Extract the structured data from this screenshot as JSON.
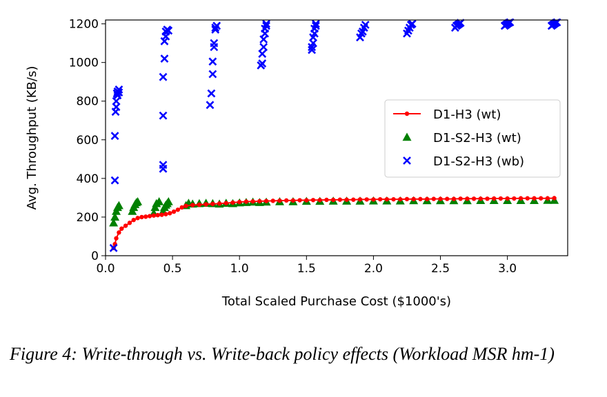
{
  "caption": "Figure 4: Write-through vs. Write-back policy effects (Workload MSR hm-1)",
  "chart_data": {
    "type": "scatter",
    "xlabel": "Total Scaled Purchase Cost ($1000's)",
    "ylabel": "Avg. Throughput (KB/s)",
    "xlim": [
      0.0,
      3.45
    ],
    "ylim": [
      0,
      1220
    ],
    "xticks": [
      "0.0",
      "0.5",
      "1.0",
      "1.5",
      "2.0",
      "2.5",
      "3.0"
    ],
    "yticks": [
      "0",
      "200",
      "400",
      "600",
      "800",
      "1000",
      "1200"
    ],
    "grid": false,
    "legend_position": "center-right",
    "series": [
      {
        "name": "D1-H3 (wt)",
        "marker": "line-dot",
        "color": "#ff0000",
        "x": [
          0.06,
          0.07,
          0.08,
          0.1,
          0.12,
          0.15,
          0.18,
          0.21,
          0.24,
          0.27,
          0.3,
          0.33,
          0.36,
          0.39,
          0.42,
          0.45,
          0.48,
          0.51,
          0.54,
          0.57,
          0.6,
          0.65,
          0.7,
          0.75,
          0.8,
          0.85,
          0.9,
          0.95,
          1.0,
          1.05,
          1.1,
          1.15,
          1.2,
          1.25,
          1.3,
          1.35,
          1.4,
          1.45,
          1.5,
          1.55,
          1.6,
          1.65,
          1.7,
          1.75,
          1.8,
          1.85,
          1.9,
          1.95,
          2.0,
          2.05,
          2.1,
          2.15,
          2.2,
          2.25,
          2.3,
          2.35,
          2.4,
          2.45,
          2.5,
          2.55,
          2.6,
          2.65,
          2.7,
          2.75,
          2.8,
          2.85,
          2.9,
          2.95,
          3.0,
          3.05,
          3.1,
          3.15,
          3.2,
          3.25,
          3.3,
          3.35
        ],
        "y": [
          40,
          60,
          90,
          120,
          140,
          155,
          170,
          185,
          195,
          200,
          202,
          205,
          208,
          210,
          212,
          215,
          220,
          228,
          238,
          250,
          258,
          262,
          264,
          266,
          268,
          270,
          272,
          275,
          278,
          280,
          281,
          282,
          283,
          284,
          285,
          286,
          286,
          287,
          287,
          288,
          288,
          289,
          289,
          290,
          290,
          290,
          291,
          291,
          291,
          292,
          292,
          292,
          292,
          293,
          293,
          293,
          293,
          294,
          294,
          294,
          294,
          295,
          295,
          295,
          295,
          295,
          296,
          296,
          296,
          296,
          297,
          297,
          297,
          297,
          297,
          298
        ]
      },
      {
        "name": "D1-S2-H3 (wt)",
        "marker": "triangle",
        "color": "#008000",
        "x": [
          0.06,
          0.07,
          0.08,
          0.09,
          0.1,
          0.2,
          0.21,
          0.22,
          0.23,
          0.24,
          0.36,
          0.37,
          0.38,
          0.4,
          0.43,
          0.44,
          0.45,
          0.46,
          0.47,
          0.6,
          0.62,
          0.65,
          0.7,
          0.75,
          0.8,
          0.85,
          0.9,
          0.95,
          1.0,
          1.05,
          1.1,
          1.15,
          1.2,
          1.3,
          1.4,
          1.5,
          1.6,
          1.7,
          1.8,
          1.9,
          2.0,
          2.1,
          2.2,
          2.3,
          2.4,
          2.5,
          2.6,
          2.7,
          2.8,
          2.9,
          3.0,
          3.1,
          3.2,
          3.3,
          3.35
        ],
        "y": [
          170,
          200,
          230,
          250,
          260,
          230,
          250,
          265,
          275,
          280,
          220,
          250,
          270,
          280,
          230,
          250,
          262,
          270,
          280,
          260,
          272,
          268,
          270,
          272,
          270,
          268,
          272,
          270,
          274,
          276,
          278,
          276,
          278,
          280,
          280,
          282,
          282,
          283,
          283,
          283,
          284,
          284,
          284,
          285,
          285,
          285,
          285,
          285,
          286,
          286,
          286,
          286,
          286,
          287,
          287
        ]
      },
      {
        "name": "D1-S2-H3 (wb)",
        "marker": "x",
        "color": "#0000ff",
        "x": [
          0.06,
          0.07,
          0.07,
          0.075,
          0.08,
          0.08,
          0.085,
          0.09,
          0.09,
          0.1,
          0.1,
          0.43,
          0.43,
          0.43,
          0.43,
          0.44,
          0.44,
          0.45,
          0.45,
          0.46,
          0.47,
          0.78,
          0.79,
          0.8,
          0.8,
          0.81,
          0.81,
          0.82,
          0.82,
          0.83,
          1.16,
          1.17,
          1.17,
          1.18,
          1.18,
          1.19,
          1.19,
          1.2,
          1.2,
          1.54,
          1.54,
          1.55,
          1.55,
          1.56,
          1.56,
          1.57,
          1.57,
          1.9,
          1.91,
          1.92,
          1.93,
          1.94,
          2.25,
          2.26,
          2.27,
          2.28,
          2.29,
          2.61,
          2.62,
          2.63,
          2.64,
          2.65,
          2.98,
          2.99,
          3.0,
          3.01,
          3.02,
          3.33,
          3.34,
          3.35,
          3.36,
          3.37
        ],
        "y": [
          40,
          390,
          620,
          745,
          770,
          800,
          840,
          850,
          830,
          860,
          845,
          450,
          470,
          725,
          925,
          1020,
          1110,
          1135,
          1160,
          1170,
          1165,
          780,
          840,
          940,
          1005,
          1080,
          1100,
          1170,
          1180,
          1190,
          985,
          995,
          1045,
          1080,
          1120,
          1150,
          1175,
          1190,
          1200,
          1065,
          1080,
          1100,
          1130,
          1150,
          1175,
          1190,
          1200,
          1130,
          1150,
          1160,
          1180,
          1195,
          1150,
          1165,
          1180,
          1195,
          1200,
          1180,
          1190,
          1195,
          1200,
          1205,
          1190,
          1195,
          1200,
          1205,
          1208,
          1190,
          1195,
          1200,
          1205,
          1208
        ]
      }
    ]
  }
}
